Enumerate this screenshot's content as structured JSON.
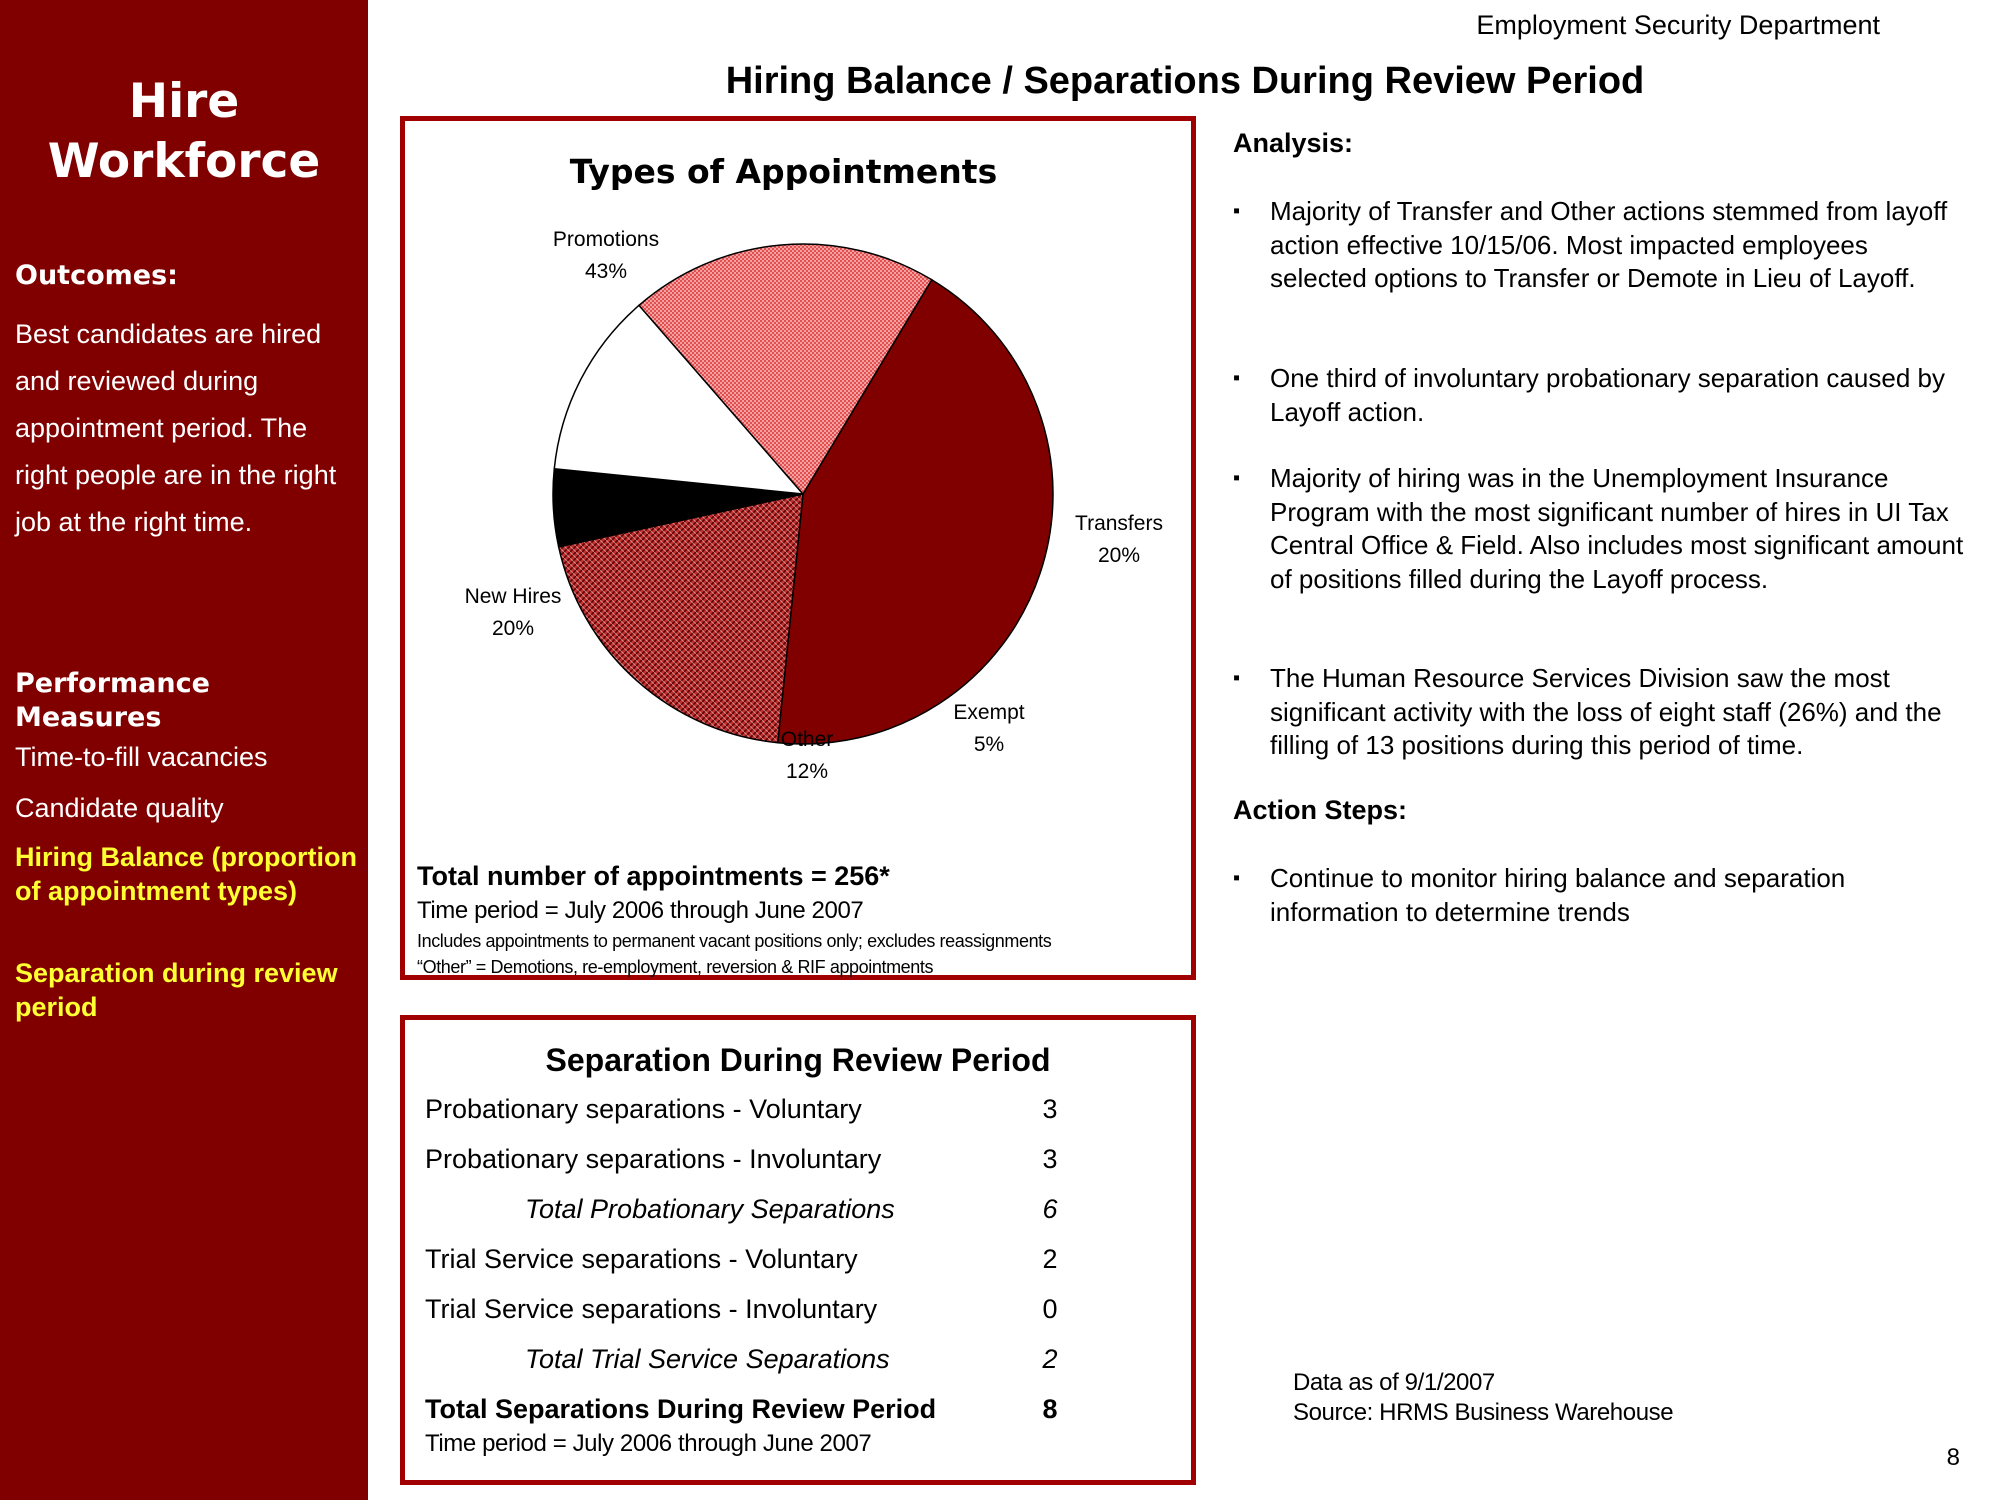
{
  "sidebar": {
    "title_line1": "Hire",
    "title_line2": "Workforce",
    "outcomes_heading": "Outcomes:",
    "outcomes_text": "Best candidates are hired and reviewed during appointment period. The right people are in the right job at the right time.",
    "measures_heading": "Performance Measures",
    "measures": [
      "Time-to-fill vacancies",
      "Candidate quality",
      "Hiring Balance (proportion of appointment types)",
      "Separation during review period"
    ]
  },
  "header": {
    "department": "Employment Security Department",
    "title": "Hiring Balance / Separations During Review Period"
  },
  "chart_data": {
    "type": "pie",
    "title": "Types of Appointments",
    "slices": [
      {
        "label": "Promotions",
        "value": 43,
        "display": "43%"
      },
      {
        "label": "Transfers",
        "value": 20,
        "display": "20%"
      },
      {
        "label": "Exempt",
        "value": 5,
        "display": "5%"
      },
      {
        "label": "Other",
        "value": 12,
        "display": "12%"
      },
      {
        "label": "New Hires",
        "value": 20,
        "display": "20%"
      }
    ],
    "colors": {
      "promotions": "#800000",
      "transfers": "#a00000",
      "exempt": "#000000",
      "other": "#ffffff",
      "new_hires": "#f08080"
    }
  },
  "chart_footer": {
    "total": "Total number of appointments = 256*",
    "period": "Time period = July 2006 through June 2007",
    "note1": "Includes appointments to permanent vacant positions only; excludes reassignments",
    "note2": "“Other” = Demotions, re-employment, reversion & RIF appointments"
  },
  "separation": {
    "title": "Separation During Review Period",
    "rows": [
      {
        "label": "Probationary separations - Voluntary",
        "value": "3"
      },
      {
        "label": "Probationary separations - Involuntary",
        "value": "3"
      },
      {
        "label": "Total Probationary Separations",
        "value": "6"
      },
      {
        "label": "Trial Service separations - Voluntary",
        "value": "2"
      },
      {
        "label": "Trial Service separations - Involuntary",
        "value": "0"
      },
      {
        "label": "Total Trial Service Separations",
        "value": "2"
      },
      {
        "label": "Total Separations During Review Period",
        "value": "8"
      }
    ],
    "period": "Time period = July 2006 through June 2007"
  },
  "analysis": {
    "heading": "Analysis:",
    "bullets": [
      "Majority of Transfer and Other actions stemmed from layoff action effective 10/15/06.  Most impacted employees selected options to Transfer or Demote in Lieu of Layoff.",
      "One third of involuntary probationary separation caused by Layoff action.",
      "Majority of hiring was in the Unemployment Insurance Program with the most significant number of hires in UI Tax Central Office & Field.  Also includes most significant amount of positions filled during the Layoff process.",
      "The Human Resource Services Division saw the most significant activity with the loss of eight staff (26%) and the filling of 13 positions during this period of time."
    ],
    "action_heading": "Action Steps:",
    "action_bullets": [
      "Continue to monitor hiring balance and separation information to determine trends"
    ],
    "bullet_mark": "▪"
  },
  "footer": {
    "data_as_of": "Data as of 9/1/2007",
    "source": "Source:  HRMS Business Warehouse",
    "page_number": "8"
  }
}
